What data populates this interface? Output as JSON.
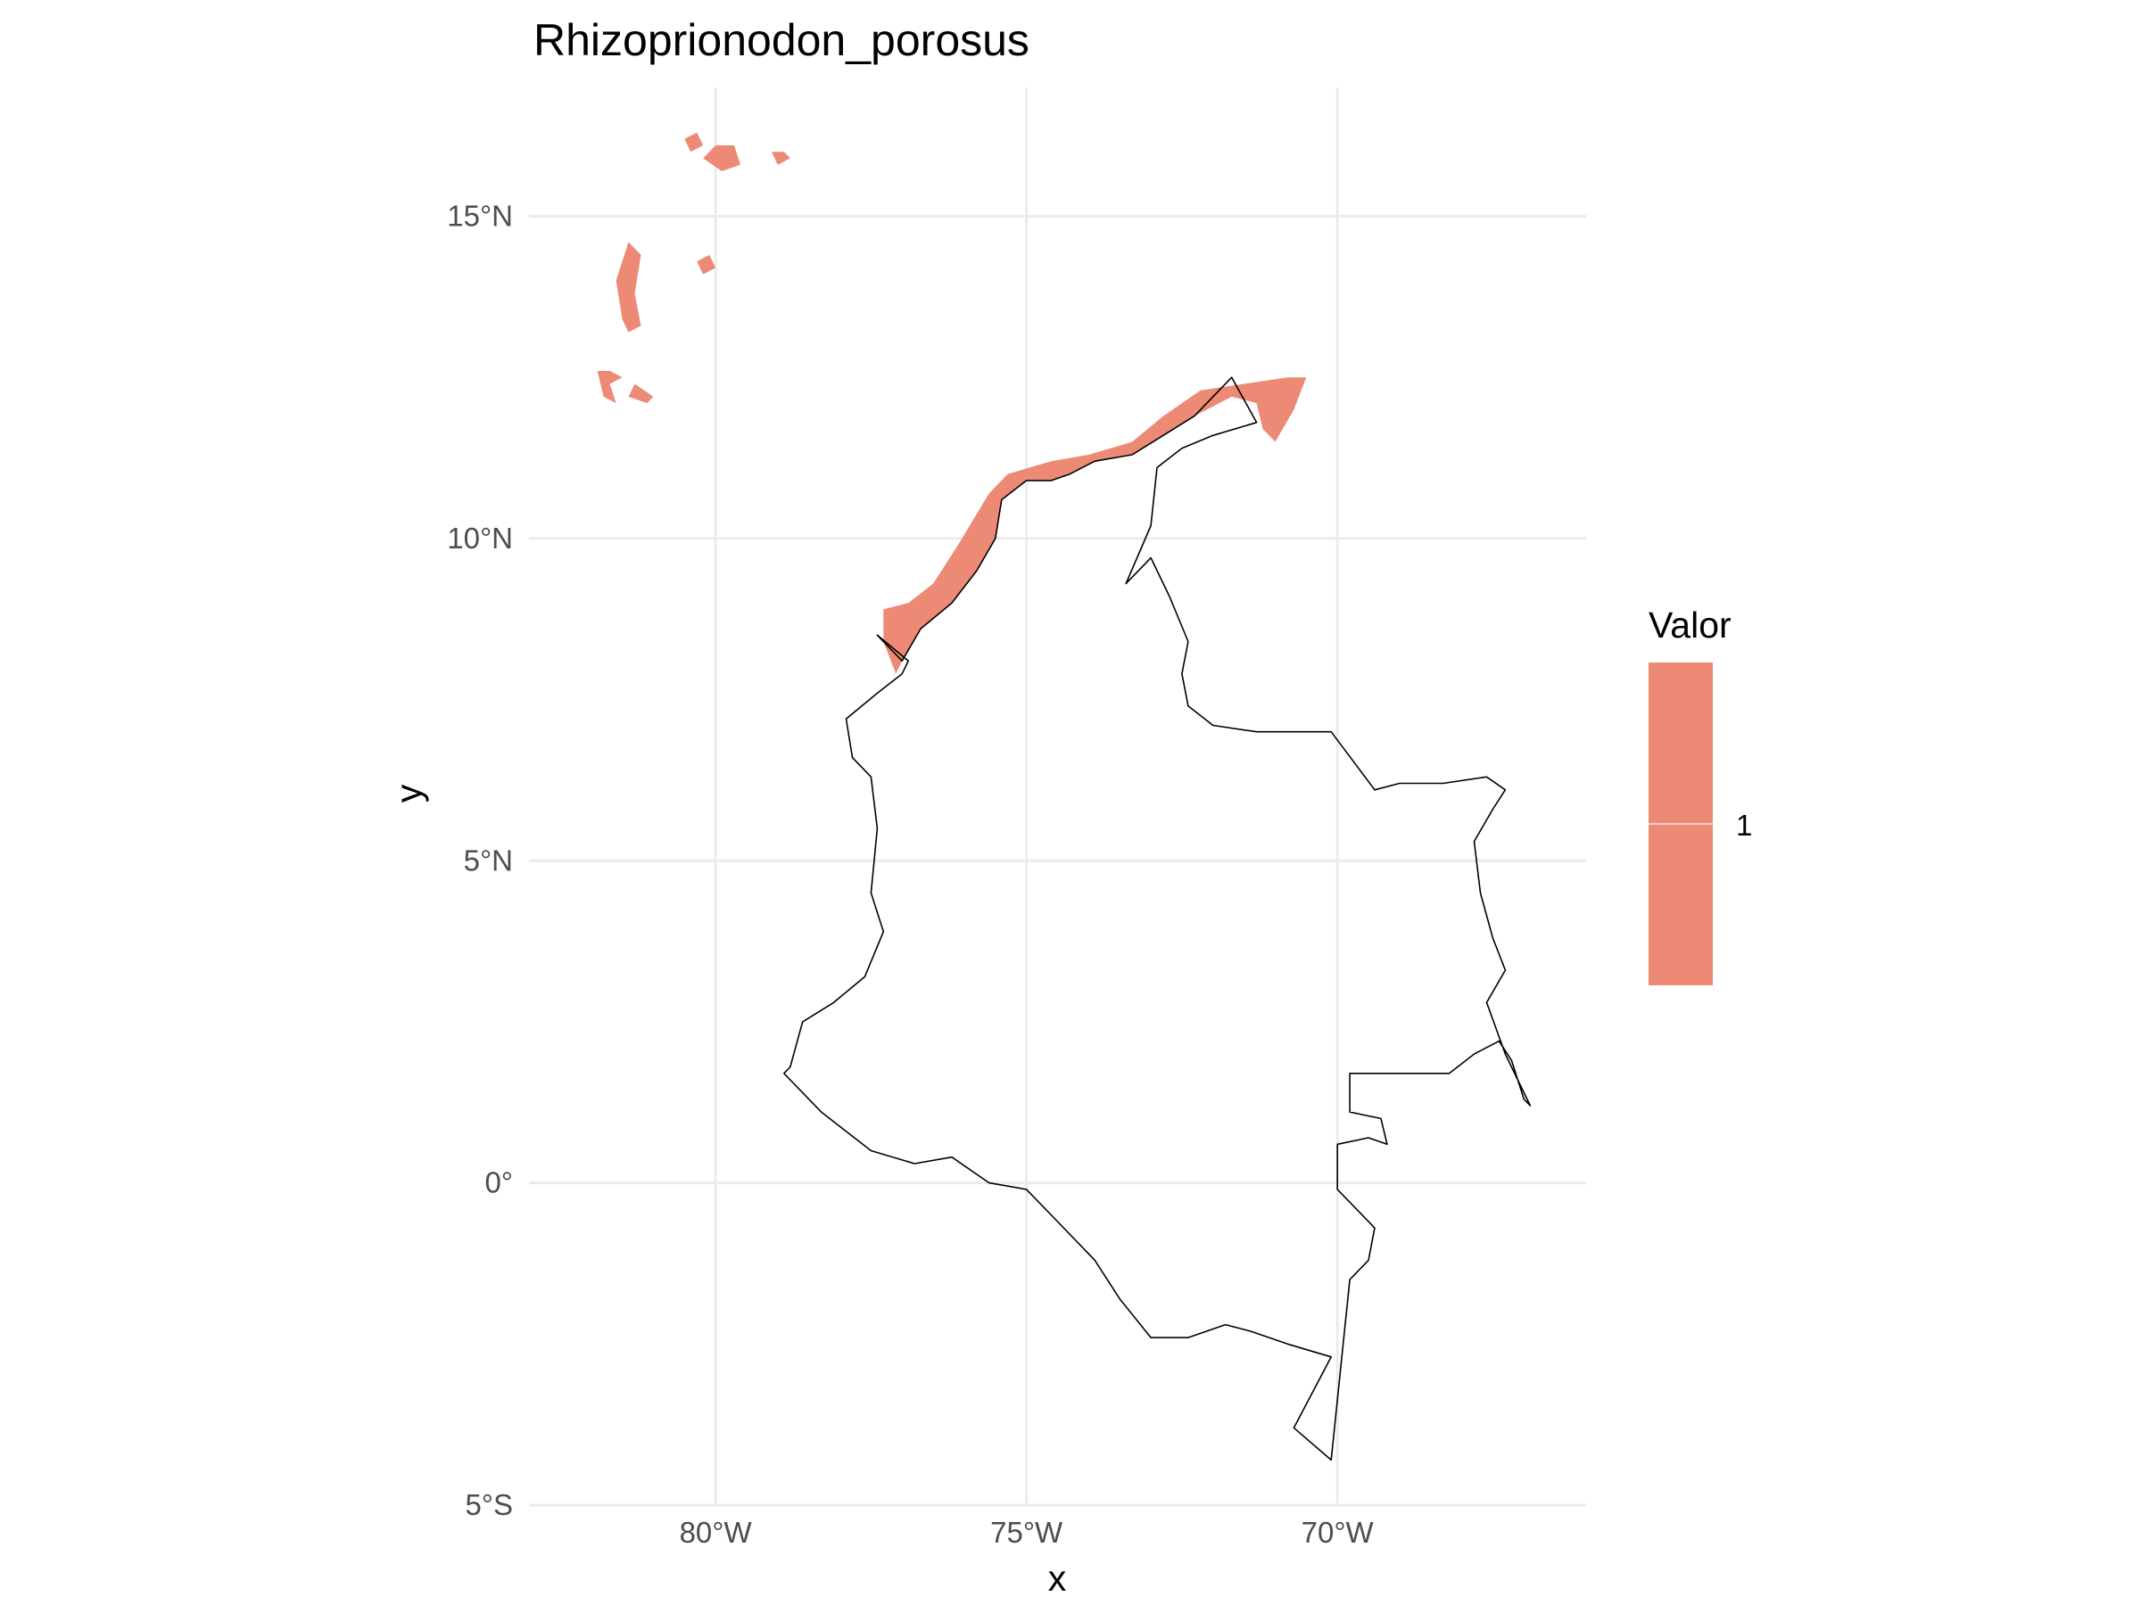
{
  "title": "Rhizoprionodon_porosus",
  "axes": {
    "x_title": "x",
    "y_title": "y",
    "x_ticks": [
      {
        "value": -80,
        "label": "80°W"
      },
      {
        "value": -75,
        "label": "75°W"
      },
      {
        "value": -70,
        "label": "70°W"
      }
    ],
    "y_ticks": [
      {
        "value": 15,
        "label": "15°N"
      },
      {
        "value": 10,
        "label": "10°N"
      },
      {
        "value": 5,
        "label": "5°N"
      },
      {
        "value": 0,
        "label": "0°"
      },
      {
        "value": -5,
        "label": "5°S"
      }
    ]
  },
  "legend": {
    "title": "Valor",
    "items": [
      {
        "value": "1",
        "color": "#ec8a75"
      }
    ]
  },
  "colors": {
    "range_fill": "#ec8a75",
    "border": "#000000",
    "grid": "#ebebeb"
  },
  "chart_data": {
    "type": "map",
    "title": "Rhizoprionodon_porosus",
    "xlabel": "x",
    "ylabel": "y",
    "xlim": [
      -83.0,
      -66.0
    ],
    "ylim": [
      -5.0,
      17.0
    ],
    "grid": true,
    "legend_position": "right",
    "layers": [
      {
        "kind": "range",
        "legend_value": "1",
        "fill": "#ec8a75",
        "polygons": [
          [
            [
              -77.3,
              8.9
            ],
            [
              -76.9,
              9.0
            ],
            [
              -76.5,
              9.3
            ],
            [
              -76.1,
              9.9
            ],
            [
              -75.6,
              10.7
            ],
            [
              -75.3,
              11.0
            ],
            [
              -74.6,
              11.2
            ],
            [
              -74.0,
              11.3
            ],
            [
              -73.3,
              11.5
            ],
            [
              -72.8,
              11.9
            ],
            [
              -72.2,
              12.3
            ],
            [
              -71.5,
              12.4
            ],
            [
              -70.8,
              12.5
            ],
            [
              -70.5,
              12.5
            ],
            [
              -70.7,
              12.0
            ],
            [
              -71.0,
              11.5
            ],
            [
              -71.2,
              11.7
            ],
            [
              -71.3,
              12.1
            ],
            [
              -71.7,
              12.2
            ],
            [
              -72.3,
              11.9
            ],
            [
              -72.8,
              11.6
            ],
            [
              -73.3,
              11.3
            ],
            [
              -73.9,
              11.2
            ],
            [
              -74.3,
              11.0
            ],
            [
              -74.6,
              10.9
            ],
            [
              -75.0,
              10.9
            ],
            [
              -75.4,
              10.6
            ],
            [
              -75.5,
              10.0
            ],
            [
              -75.8,
              9.5
            ],
            [
              -76.2,
              9.0
            ],
            [
              -76.7,
              8.6
            ],
            [
              -77.0,
              8.1
            ],
            [
              -77.1,
              7.9
            ],
            [
              -77.3,
              8.4
            ]
          ],
          [
            [
              -80.2,
              15.9
            ],
            [
              -79.9,
              15.7
            ],
            [
              -79.6,
              15.8
            ],
            [
              -79.7,
              16.1
            ],
            [
              -80.0,
              16.1
            ]
          ],
          [
            [
              -80.4,
              16.0
            ],
            [
              -80.5,
              16.2
            ],
            [
              -80.3,
              16.3
            ],
            [
              -80.2,
              16.1
            ]
          ],
          [
            [
              -79.1,
              16.0
            ],
            [
              -79.0,
              15.8
            ],
            [
              -78.8,
              15.9
            ],
            [
              -78.9,
              16.0
            ]
          ],
          [
            [
              -81.4,
              14.6
            ],
            [
              -81.6,
              14.0
            ],
            [
              -81.5,
              13.4
            ],
            [
              -81.4,
              13.2
            ],
            [
              -81.2,
              13.3
            ],
            [
              -81.3,
              13.8
            ],
            [
              -81.2,
              14.4
            ]
          ],
          [
            [
              -80.3,
              14.3
            ],
            [
              -80.1,
              14.4
            ],
            [
              -80.0,
              14.2
            ],
            [
              -80.2,
              14.1
            ]
          ],
          [
            [
              -81.9,
              12.6
            ],
            [
              -81.8,
              12.2
            ],
            [
              -81.6,
              12.1
            ],
            [
              -81.7,
              12.4
            ],
            [
              -81.5,
              12.5
            ],
            [
              -81.7,
              12.6
            ]
          ],
          [
            [
              -81.3,
              12.4
            ],
            [
              -81.0,
              12.2
            ],
            [
              -81.1,
              12.1
            ],
            [
              -81.4,
              12.2
            ]
          ]
        ]
      },
      {
        "kind": "boundary",
        "stroke": "#000000",
        "polygons": [
          [
            [
              -77.4,
              8.5
            ],
            [
              -76.9,
              8.1
            ],
            [
              -77.0,
              7.9
            ],
            [
              -77.4,
              7.6
            ],
            [
              -77.9,
              7.2
            ],
            [
              -77.8,
              6.6
            ],
            [
              -77.5,
              6.3
            ],
            [
              -77.4,
              5.5
            ],
            [
              -77.5,
              4.5
            ],
            [
              -77.3,
              3.9
            ],
            [
              -77.6,
              3.2
            ],
            [
              -78.1,
              2.8
            ],
            [
              -78.6,
              2.5
            ],
            [
              -78.8,
              1.8
            ],
            [
              -78.9,
              1.7
            ],
            [
              -78.3,
              1.1
            ],
            [
              -77.5,
              0.5
            ],
            [
              -76.8,
              0.3
            ],
            [
              -76.2,
              0.4
            ],
            [
              -75.6,
              0.0
            ],
            [
              -75.0,
              -0.1
            ],
            [
              -74.5,
              -0.6
            ],
            [
              -73.9,
              -1.2
            ],
            [
              -73.5,
              -1.8
            ],
            [
              -73.0,
              -2.4
            ],
            [
              -72.4,
              -2.4
            ],
            [
              -71.8,
              -2.2
            ],
            [
              -71.4,
              -2.3
            ],
            [
              -70.8,
              -2.5
            ],
            [
              -70.1,
              -2.7
            ],
            [
              -70.7,
              -3.8
            ],
            [
              -70.1,
              -4.3
            ],
            [
              -69.8,
              -1.5
            ],
            [
              -69.5,
              -1.2
            ],
            [
              -69.4,
              -0.7
            ],
            [
              -69.6,
              -0.5
            ],
            [
              -70.0,
              -0.1
            ],
            [
              -70.0,
              0.6
            ],
            [
              -69.5,
              0.7
            ],
            [
              -69.2,
              0.6
            ],
            [
              -69.3,
              1.0
            ],
            [
              -69.8,
              1.1
            ],
            [
              -69.8,
              1.7
            ],
            [
              -68.2,
              1.7
            ],
            [
              -67.8,
              2.0
            ],
            [
              -67.4,
              2.2
            ],
            [
              -67.2,
              1.9
            ],
            [
              -67.0,
              1.3
            ],
            [
              -66.9,
              1.2
            ],
            [
              -67.3,
              2.0
            ],
            [
              -67.6,
              2.8
            ],
            [
              -67.3,
              3.3
            ],
            [
              -67.5,
              3.8
            ],
            [
              -67.7,
              4.5
            ],
            [
              -67.8,
              5.3
            ],
            [
              -67.5,
              5.8
            ],
            [
              -67.3,
              6.1
            ],
            [
              -67.6,
              6.3
            ],
            [
              -68.3,
              6.2
            ],
            [
              -69.0,
              6.2
            ],
            [
              -69.4,
              6.1
            ],
            [
              -70.1,
              7.0
            ],
            [
              -70.6,
              7.0
            ],
            [
              -71.3,
              7.0
            ],
            [
              -72.0,
              7.1
            ],
            [
              -72.4,
              7.4
            ],
            [
              -72.5,
              7.9
            ],
            [
              -72.4,
              8.4
            ],
            [
              -72.7,
              9.1
            ],
            [
              -73.0,
              9.7
            ],
            [
              -73.4,
              9.3
            ],
            [
              -73.0,
              10.2
            ],
            [
              -72.9,
              11.1
            ],
            [
              -72.5,
              11.4
            ],
            [
              -72.0,
              11.6
            ],
            [
              -71.3,
              11.8
            ],
            [
              -71.7,
              12.5
            ],
            [
              -72.3,
              11.9
            ],
            [
              -72.8,
              11.6
            ],
            [
              -73.3,
              11.3
            ],
            [
              -73.9,
              11.2
            ],
            [
              -74.3,
              11.0
            ],
            [
              -74.6,
              10.9
            ],
            [
              -75.0,
              10.9
            ],
            [
              -75.4,
              10.6
            ],
            [
              -75.5,
              10.0
            ],
            [
              -75.8,
              9.5
            ],
            [
              -76.2,
              9.0
            ],
            [
              -76.7,
              8.6
            ],
            [
              -77.0,
              8.1
            ],
            [
              -77.4,
              8.5
            ]
          ]
        ]
      }
    ]
  }
}
